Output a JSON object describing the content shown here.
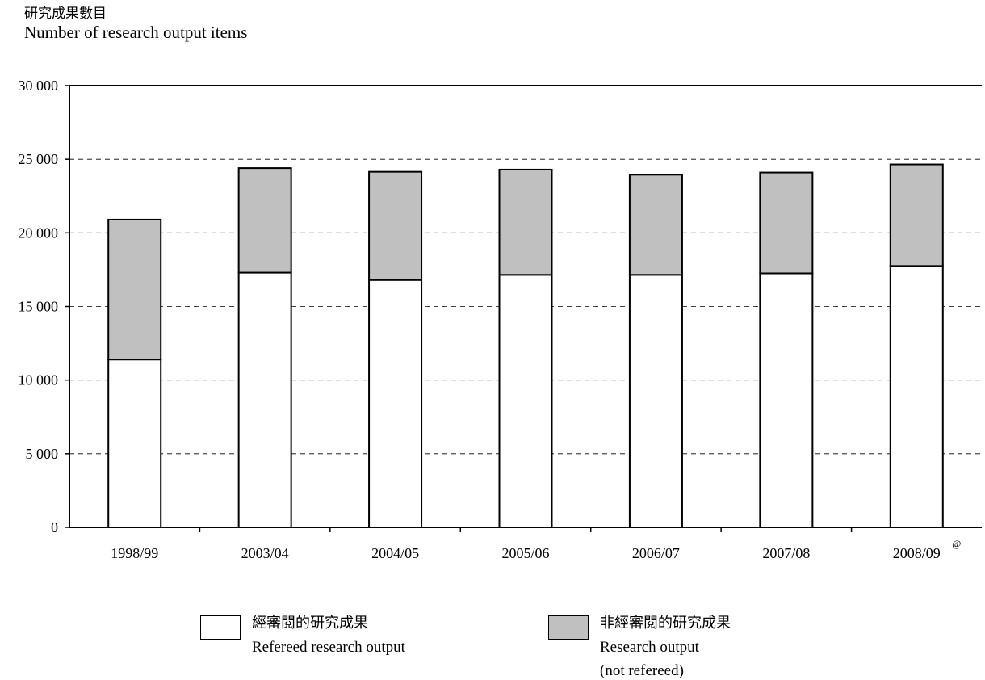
{
  "chart_data": {
    "type": "bar",
    "stacked": true,
    "y_title_zh": "研究成果數目",
    "y_title_en": "Number of research output items",
    "categories": [
      "1998/99",
      "2003/04",
      "2004/05",
      "2005/06",
      "2006/07",
      "2007/08",
      "2008/09"
    ],
    "category_annotations": [
      "",
      "",
      "",
      "",
      "",
      "",
      "@"
    ],
    "series": [
      {
        "name_zh": "經審閱的研究成果",
        "name_en": "Refereed research output",
        "color": "#ffffff",
        "values": [
          11400,
          17300,
          16800,
          17150,
          17150,
          17250,
          17750
        ]
      },
      {
        "name_zh": "非經審閱的研究成果",
        "name_en": "Research output",
        "name_en_line2": "(not refereed)",
        "color": "#c0c0c0",
        "values": [
          9500,
          7100,
          7350,
          7150,
          6800,
          6850,
          6900
        ]
      }
    ],
    "ylim": [
      0,
      30000
    ],
    "yticks": [
      0,
      5000,
      10000,
      15000,
      20000,
      25000,
      30000
    ],
    "ytick_labels": [
      "0",
      "5 000",
      "10 000",
      "15 000",
      "20 000",
      "25 000",
      "30 000"
    ],
    "grid": "dashed horizontal",
    "legend_position": "bottom"
  }
}
